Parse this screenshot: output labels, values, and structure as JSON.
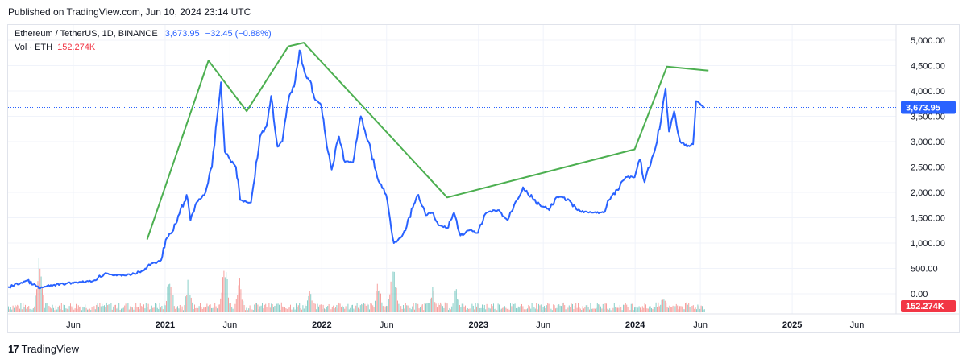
{
  "header": {
    "published": "Published on TradingView.com, Jun 10, 2024 23:14 UTC"
  },
  "legend": {
    "symbol": "Ethereum / TetherUS, 1D, BINANCE",
    "price": "3,673.95",
    "change": "−32.45 (−0.88%)",
    "volume_label": "Vol · ETH",
    "volume_value": "152.274K"
  },
  "footer": {
    "brand": "TradingView",
    "logo": "17"
  },
  "colors": {
    "price_line": "#2962ff",
    "pattern_line": "#4caf50",
    "volume_up": "#26a69a",
    "volume_down": "#ef5350",
    "last_price_tag": "#2962ff",
    "volume_tag": "#f23645"
  },
  "chart_data": {
    "type": "line",
    "title": "Ethereum / TetherUS, 1D, BINANCE",
    "y_ticks": [
      "0.00",
      "500.00",
      "1,000.00",
      "1,500.00",
      "2,000.00",
      "2,500.00",
      "3,000.00",
      "3,500.00",
      "4,000.00",
      "4,500.00",
      "5,000.00"
    ],
    "x_ticks": [
      "Jun",
      "2021",
      "Jun",
      "2022",
      "Jun",
      "2023",
      "Jun",
      "2024",
      "Jun",
      "2025",
      "Jun"
    ],
    "x_tick_dates": [
      "2020-06-01",
      "2021-01-01",
      "2021-06-01",
      "2022-01-01",
      "2022-06-01",
      "2023-01-01",
      "2023-06-01",
      "2024-01-01",
      "2024-06-01",
      "2025-01-01",
      "2025-06-01"
    ],
    "ylim": [
      0,
      5000
    ],
    "last_price": "3,673.95",
    "last_volume": "152.274K",
    "price_series": {
      "name": "ETH/USDT",
      "points": [
        [
          "2020-01-01",
          130
        ],
        [
          "2020-02-15",
          260
        ],
        [
          "2020-03-13",
          110
        ],
        [
          "2020-04-15",
          170
        ],
        [
          "2020-05-15",
          200
        ],
        [
          "2020-06-15",
          235
        ],
        [
          "2020-07-15",
          245
        ],
        [
          "2020-08-15",
          410
        ],
        [
          "2020-09-10",
          360
        ],
        [
          "2020-10-15",
          380
        ],
        [
          "2020-11-10",
          450
        ],
        [
          "2020-11-30",
          600
        ],
        [
          "2020-12-20",
          640
        ],
        [
          "2021-01-05",
          1100
        ],
        [
          "2021-01-20",
          1250
        ],
        [
          "2021-02-20",
          1950
        ],
        [
          "2021-03-01",
          1450
        ],
        [
          "2021-03-15",
          1800
        ],
        [
          "2021-04-05",
          2000
        ],
        [
          "2021-04-20",
          2500
        ],
        [
          "2021-05-11",
          4170
        ],
        [
          "2021-05-20",
          2800
        ],
        [
          "2021-06-01",
          2650
        ],
        [
          "2021-06-15",
          2500
        ],
        [
          "2021-06-25",
          1850
        ],
        [
          "2021-07-20",
          1800
        ],
        [
          "2021-08-10",
          3100
        ],
        [
          "2021-08-25",
          3300
        ],
        [
          "2021-09-05",
          3900
        ],
        [
          "2021-09-20",
          2900
        ],
        [
          "2021-10-01",
          3000
        ],
        [
          "2021-10-15",
          3800
        ],
        [
          "2021-10-31",
          4200
        ],
        [
          "2021-11-10",
          4800
        ],
        [
          "2021-11-25",
          4300
        ],
        [
          "2021-12-05",
          4200
        ],
        [
          "2021-12-15",
          3850
        ],
        [
          "2021-12-31",
          3700
        ],
        [
          "2022-01-10",
          3100
        ],
        [
          "2022-01-24",
          2450
        ],
        [
          "2022-02-10",
          3100
        ],
        [
          "2022-02-24",
          2600
        ],
        [
          "2022-03-15",
          2600
        ],
        [
          "2022-04-02",
          3500
        ],
        [
          "2022-04-20",
          3000
        ],
        [
          "2022-05-10",
          2300
        ],
        [
          "2022-05-31",
          1950
        ],
        [
          "2022-06-18",
          1000
        ],
        [
          "2022-07-01",
          1100
        ],
        [
          "2022-07-15",
          1250
        ],
        [
          "2022-08-01",
          1700
        ],
        [
          "2022-08-14",
          1950
        ],
        [
          "2022-08-31",
          1550
        ],
        [
          "2022-09-15",
          1600
        ],
        [
          "2022-09-30",
          1350
        ],
        [
          "2022-10-20",
          1300
        ],
        [
          "2022-11-05",
          1600
        ],
        [
          "2022-11-20",
          1150
        ],
        [
          "2022-12-10",
          1250
        ],
        [
          "2022-12-31",
          1200
        ],
        [
          "2023-01-20",
          1600
        ],
        [
          "2023-02-15",
          1650
        ],
        [
          "2023-03-10",
          1450
        ],
        [
          "2023-03-25",
          1750
        ],
        [
          "2023-04-15",
          2100
        ],
        [
          "2023-05-15",
          1800
        ],
        [
          "2023-06-15",
          1650
        ],
        [
          "2023-07-01",
          1900
        ],
        [
          "2023-07-20",
          1900
        ],
        [
          "2023-08-20",
          1650
        ],
        [
          "2023-09-15",
          1600
        ],
        [
          "2023-10-20",
          1600
        ],
        [
          "2023-11-01",
          1850
        ],
        [
          "2023-11-20",
          2050
        ],
        [
          "2023-12-10",
          2300
        ],
        [
          "2023-12-31",
          2300
        ],
        [
          "2024-01-12",
          2650
        ],
        [
          "2024-01-23",
          2200
        ],
        [
          "2024-02-15",
          2800
        ],
        [
          "2024-03-01",
          3400
        ],
        [
          "2024-03-12",
          4050
        ],
        [
          "2024-03-20",
          3200
        ],
        [
          "2024-04-01",
          3600
        ],
        [
          "2024-04-15",
          3000
        ],
        [
          "2024-05-01",
          2900
        ],
        [
          "2024-05-15",
          2950
        ],
        [
          "2024-05-22",
          3800
        ],
        [
          "2024-05-31",
          3750
        ],
        [
          "2024-06-07",
          3700
        ],
        [
          "2024-06-10",
          3674
        ]
      ]
    },
    "pattern_line": {
      "name": "",
      "points": [
        [
          "2020-11-20",
          1070
        ],
        [
          "2021-04-12",
          4600
        ],
        [
          "2021-07-10",
          3600
        ],
        [
          "2021-10-15",
          4880
        ],
        [
          "2021-11-20",
          4950
        ],
        [
          "2022-10-20",
          1900
        ],
        [
          "2023-12-31",
          2850
        ],
        [
          "2024-03-15",
          4480
        ],
        [
          "2024-06-20",
          4400
        ]
      ]
    },
    "volume": {
      "ylim": [
        0,
        5000000
      ],
      "start": "2020-01-01",
      "end": "2024-06-10",
      "spikes": [
        [
          "2020-03-13",
          4800000
        ],
        [
          "2021-01-11",
          3200000
        ],
        [
          "2021-02-23",
          2500000
        ],
        [
          "2021-05-19",
          4300000
        ],
        [
          "2021-06-22",
          2600000
        ],
        [
          "2021-12-04",
          1700000
        ],
        [
          "2022-05-12",
          2500000
        ],
        [
          "2022-06-13",
          3600000
        ],
        [
          "2022-06-18",
          3000000
        ],
        [
          "2022-09-15",
          2000000
        ],
        [
          "2022-11-09",
          1900000
        ],
        [
          "2024-03-05",
          1400000
        ]
      ]
    }
  }
}
